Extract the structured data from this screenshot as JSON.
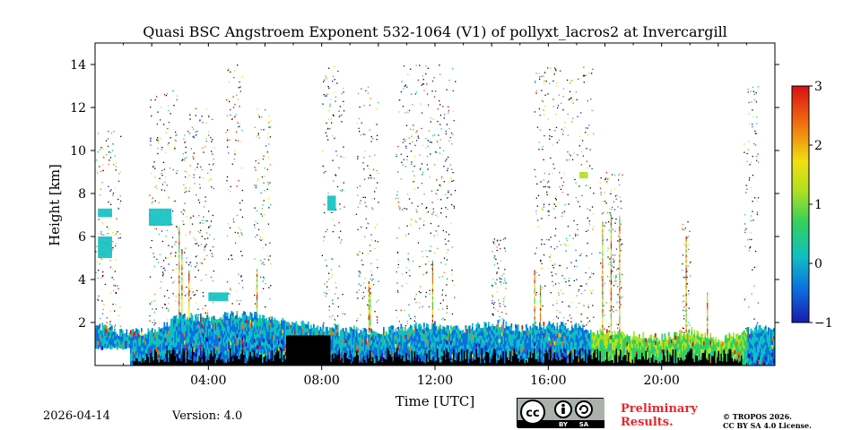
{
  "chart_data": {
    "type": "heatmap",
    "title": "Quasi BSC Angstroem Exponent 532-1064 (V1) of pollyxt_lacros2 at Invercargill",
    "xlabel": "Time [UTC]",
    "ylabel": "Height [km]",
    "xlim_hours": [
      0,
      24
    ],
    "ylim_km": [
      0,
      15
    ],
    "x_ticks": [
      {
        "hour": 4,
        "label": "04:00"
      },
      {
        "hour": 8,
        "label": "08:00"
      },
      {
        "hour": 12,
        "label": "12:00"
      },
      {
        "hour": 16,
        "label": "16:00"
      },
      {
        "hour": 20,
        "label": "20:00"
      }
    ],
    "y_ticks": [
      {
        "km": 2,
        "label": "2"
      },
      {
        "km": 4,
        "label": "4"
      },
      {
        "km": 6,
        "label": "6"
      },
      {
        "km": 8,
        "label": "8"
      },
      {
        "km": 10,
        "label": "10"
      },
      {
        "km": 12,
        "label": "12"
      },
      {
        "km": 14,
        "label": "14"
      }
    ],
    "colorbar": {
      "range": [
        -1,
        3
      ],
      "ticks": [
        {
          "value": 3,
          "label": "3"
        },
        {
          "value": 2,
          "label": "2"
        },
        {
          "value": 1,
          "label": "1"
        },
        {
          "value": 0,
          "label": "0"
        },
        {
          "value": -1,
          "label": "−1"
        }
      ],
      "colormap": [
        "#1a1aa8",
        "#0a6fe0",
        "#10c0c0",
        "#30d060",
        "#b0e020",
        "#f0e010",
        "#f07010",
        "#d81010"
      ]
    },
    "boundary_layer_top_km": [
      {
        "hour": 0.0,
        "km": 1.9
      },
      {
        "hour": 1.0,
        "km": 1.5
      },
      {
        "hour": 2.0,
        "km": 1.6
      },
      {
        "hour": 3.0,
        "km": 2.3
      },
      {
        "hour": 4.0,
        "km": 2.2
      },
      {
        "hour": 5.0,
        "km": 2.4
      },
      {
        "hour": 6.0,
        "km": 2.3
      },
      {
        "hour": 7.0,
        "km": 2.0
      },
      {
        "hour": 8.0,
        "km": 1.8
      },
      {
        "hour": 9.0,
        "km": 1.7
      },
      {
        "hour": 10.0,
        "km": 1.6
      },
      {
        "hour": 11.0,
        "km": 1.8
      },
      {
        "hour": 12.0,
        "km": 1.9
      },
      {
        "hour": 13.0,
        "km": 1.7
      },
      {
        "hour": 14.0,
        "km": 2.0
      },
      {
        "hour": 15.0,
        "km": 1.7
      },
      {
        "hour": 16.0,
        "km": 1.9
      },
      {
        "hour": 17.0,
        "km": 1.8
      },
      {
        "hour": 18.0,
        "km": 1.5
      },
      {
        "hour": 19.0,
        "km": 1.4
      },
      {
        "hour": 20.0,
        "km": 1.3
      },
      {
        "hour": 21.0,
        "km": 1.6
      },
      {
        "hour": 22.0,
        "km": 1.2
      },
      {
        "hour": 23.0,
        "km": 1.6
      },
      {
        "hour": 24.0,
        "km": 1.8
      }
    ],
    "aerosol_layers": [
      {
        "hour_start": 0.1,
        "hour_end": 0.6,
        "km_low": 6.9,
        "km_high": 7.3,
        "value": 0.2
      },
      {
        "hour_start": 0.1,
        "hour_end": 0.6,
        "km_low": 5.0,
        "km_high": 6.0,
        "value": 0.1
      },
      {
        "hour_start": 1.9,
        "hour_end": 2.7,
        "km_low": 6.5,
        "km_high": 7.3,
        "value": 0.2
      },
      {
        "hour_start": 4.0,
        "hour_end": 4.7,
        "km_low": 3.0,
        "km_high": 3.4,
        "value": 0.1
      },
      {
        "hour_start": 8.2,
        "hour_end": 8.5,
        "km_low": 7.2,
        "km_high": 7.9,
        "value": 0.3
      },
      {
        "hour_start": 17.1,
        "hour_end": 17.4,
        "km_low": 8.7,
        "km_high": 9.0,
        "value": 1.0
      }
    ]
  },
  "footer": {
    "date": "2026-04-14",
    "version": "Version: 4.0",
    "preliminary_line1": "Preliminary",
    "preliminary_line2": "Results.",
    "copyright_line1": "© TROPOS 2026.",
    "copyright_line2": "CC BY SA 4.0 License.",
    "license_badge": [
      "cc",
      "BY",
      "SA"
    ]
  }
}
